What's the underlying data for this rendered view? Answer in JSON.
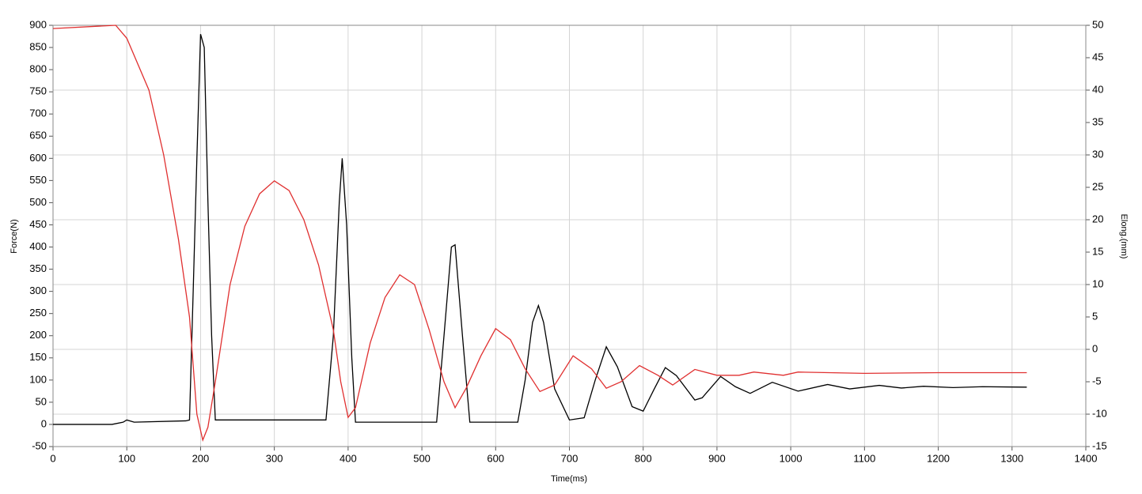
{
  "chart_data": {
    "type": "line",
    "xlabel": "Time(ms)",
    "ylabel": "Force(N)",
    "y2label": "Elong.(mm)",
    "xlim": [
      0,
      1400
    ],
    "xticks": [
      0,
      100,
      200,
      300,
      400,
      500,
      600,
      700,
      800,
      900,
      1000,
      1100,
      1200,
      1300,
      1400
    ],
    "ylim": [
      -50,
      900
    ],
    "yticks": [
      -50,
      0,
      50,
      100,
      150,
      200,
      250,
      300,
      350,
      400,
      450,
      500,
      550,
      600,
      650,
      700,
      750,
      800,
      850,
      900
    ],
    "y2lim": [
      -15,
      50
    ],
    "y2ticks": [
      -15,
      -10,
      -5,
      0,
      5,
      10,
      15,
      20,
      25,
      30,
      35,
      40,
      45,
      50
    ],
    "grid": true,
    "series": [
      {
        "color": "#000000",
        "axis": "y",
        "x": [
          0,
          80,
          95,
          100,
          110,
          180,
          185,
          190,
          195,
          200,
          205,
          210,
          215,
          220,
          370,
          380,
          388,
          392,
          398,
          405,
          410,
          520,
          530,
          540,
          545,
          555,
          565,
          630,
          640,
          650,
          658,
          665,
          680,
          700,
          720,
          735,
          750,
          765,
          785,
          800,
          815,
          830,
          845,
          870,
          880,
          905,
          925,
          945,
          975,
          1010,
          1050,
          1080,
          1120,
          1150,
          1180,
          1220,
          1260,
          1320
        ],
        "values": [
          0,
          0,
          5,
          10,
          5,
          8,
          10,
          300,
          600,
          880,
          850,
          500,
          200,
          10,
          10,
          200,
          500,
          600,
          450,
          150,
          5,
          5,
          200,
          400,
          405,
          200,
          5,
          5,
          100,
          230,
          268,
          230,
          80,
          10,
          15,
          100,
          175,
          130,
          40,
          30,
          80,
          128,
          110,
          55,
          60,
          108,
          85,
          70,
          95,
          75,
          90,
          80,
          88,
          82,
          86,
          83,
          85,
          84
        ]
      },
      {
        "color": "#e03030",
        "axis": "y2",
        "x": [
          0,
          85,
          100,
          130,
          150,
          170,
          185,
          195,
          203,
          210,
          220,
          240,
          260,
          280,
          300,
          320,
          340,
          360,
          380,
          390,
          400,
          410,
          430,
          450,
          470,
          490,
          510,
          530,
          545,
          560,
          580,
          600,
          620,
          640,
          660,
          680,
          705,
          730,
          750,
          770,
          795,
          820,
          840,
          870,
          900,
          930,
          950,
          990,
          1010,
          1100,
          1200,
          1320
        ],
        "values": [
          49.5,
          50,
          48,
          40,
          30,
          17,
          5,
          -10,
          -14,
          -12,
          -5,
          10,
          19,
          24,
          26,
          24.5,
          20,
          13,
          3,
          -5,
          -10.5,
          -9,
          1,
          8,
          11.5,
          10,
          3,
          -5,
          -9,
          -6,
          -1,
          3.2,
          1.5,
          -3,
          -6.5,
          -5.5,
          -1,
          -3,
          -6,
          -5,
          -2.5,
          -4,
          -5.5,
          -3.1,
          -4,
          -4,
          -3.5,
          -4,
          -3.5,
          -3.7,
          -3.6,
          -3.6
        ]
      }
    ]
  }
}
